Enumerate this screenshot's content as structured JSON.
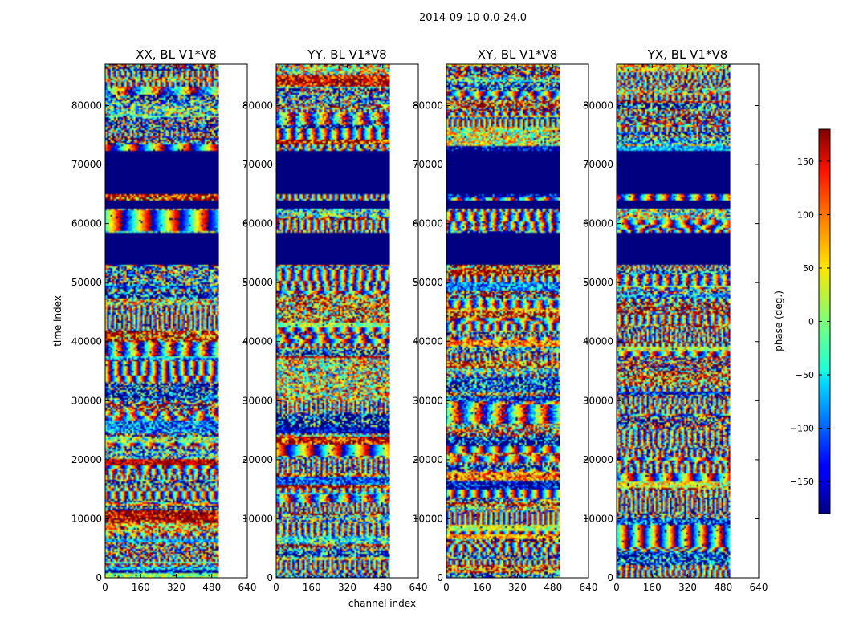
{
  "suptitle": "2014-09-10 0.0-24.0",
  "chart_data": {
    "type": "heatmap",
    "title": "2014-09-10 0.0-24.0",
    "xlabel": "channel index",
    "ylabel": "time index",
    "xlim": [
      0,
      640
    ],
    "ylim": [
      0,
      87000
    ],
    "data_xmax": 512,
    "xticks": [
      0,
      160,
      320,
      480,
      640
    ],
    "yticks": [
      0,
      10000,
      20000,
      30000,
      40000,
      50000,
      60000,
      70000,
      80000
    ],
    "panels": [
      {
        "name": "xx",
        "title": "XX, BL V1*V8"
      },
      {
        "name": "yy",
        "title": "YY, BL V1*V8"
      },
      {
        "name": "xy",
        "title": "XY, BL V1*V8"
      },
      {
        "name": "yx",
        "title": "YX, BL V1*V8"
      }
    ],
    "flagged_time_ranges": [
      [
        53000,
        58500
      ],
      [
        62500,
        64000
      ],
      [
        65000,
        72300
      ]
    ],
    "colorbar": {
      "label": "phase (deg.)",
      "range": [
        -180,
        180
      ],
      "ticks": [
        -150,
        -100,
        -50,
        0,
        50,
        100,
        150
      ],
      "colormap": "jet"
    }
  },
  "colors": {
    "axis": "#000000",
    "flagged": "#00007f"
  }
}
